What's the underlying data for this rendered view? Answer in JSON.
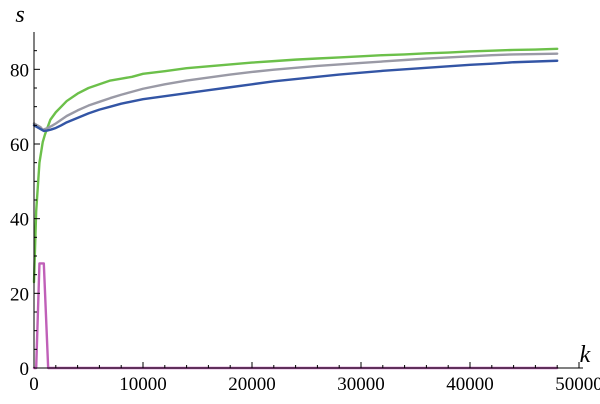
{
  "chart_data": {
    "type": "line",
    "title": "",
    "xlabel": "k",
    "ylabel": "s",
    "xlim": [
      0,
      50000
    ],
    "ylim": [
      0,
      90
    ],
    "x_ticks": [
      {
        "value": 0,
        "label": "0"
      },
      {
        "value": 10000,
        "label": "10000"
      },
      {
        "value": 20000,
        "label": "20000"
      },
      {
        "value": 30000,
        "label": "30000"
      },
      {
        "value": 40000,
        "label": "40000"
      },
      {
        "value": 50000,
        "label": "50000"
      }
    ],
    "y_ticks": [
      {
        "value": 0,
        "label": "0"
      },
      {
        "value": 20,
        "label": "20"
      },
      {
        "value": 40,
        "label": "40"
      },
      {
        "value": 60,
        "label": "60"
      },
      {
        "value": 80,
        "label": "80"
      }
    ],
    "grid": false,
    "legend": "none",
    "series": [
      {
        "color": "#6cc04a",
        "x": [
          0,
          200,
          500,
          800,
          1000,
          1500,
          2000,
          2500,
          3000,
          4000,
          5000,
          6000,
          7000,
          8000,
          9000,
          10000,
          12000,
          14000,
          16000,
          18000,
          20000,
          22000,
          24000,
          26000,
          28000,
          30000,
          32000,
          34000,
          36000,
          38000,
          40000,
          42000,
          44000,
          46000,
          48000
        ],
        "y": [
          23,
          42,
          55,
          60.5,
          62.5,
          66.5,
          68.5,
          70,
          71.5,
          73.5,
          75,
          76,
          77,
          77.5,
          78,
          78.8,
          79.5,
          80.3,
          80.8,
          81.3,
          81.8,
          82.2,
          82.6,
          82.9,
          83.2,
          83.5,
          83.8,
          84,
          84.3,
          84.5,
          84.8,
          85,
          85.2,
          85.3,
          85.5
        ]
      },
      {
        "color": "#9a9aa6",
        "x": [
          0,
          300,
          600,
          800,
          1200,
          1600,
          2000,
          2500,
          3000,
          4000,
          5000,
          6000,
          7000,
          8000,
          9000,
          10000,
          12000,
          14000,
          16000,
          18000,
          20000,
          22000,
          24000,
          26000,
          28000,
          30000,
          32000,
          34000,
          36000,
          38000,
          40000,
          42000,
          44000,
          46000,
          48000
        ],
        "y": [
          65.5,
          65,
          64.5,
          63.8,
          64.2,
          64.8,
          65.5,
          66.5,
          67.5,
          69,
          70.3,
          71.3,
          72.3,
          73.2,
          74,
          74.8,
          76,
          77,
          77.8,
          78.6,
          79.3,
          79.9,
          80.4,
          80.9,
          81.3,
          81.7,
          82.1,
          82.5,
          82.9,
          83.2,
          83.5,
          83.8,
          84,
          84.1,
          84.2
        ]
      },
      {
        "color": "#3355a5",
        "x": [
          0,
          300,
          600,
          900,
          1200,
          1600,
          2000,
          2500,
          3000,
          4000,
          5000,
          6000,
          7000,
          8000,
          9000,
          10000,
          12000,
          14000,
          16000,
          18000,
          20000,
          22000,
          24000,
          26000,
          28000,
          30000,
          32000,
          34000,
          36000,
          38000,
          40000,
          42000,
          44000,
          46000,
          48000
        ],
        "y": [
          65,
          64.5,
          64,
          63.5,
          63.6,
          63.9,
          64.3,
          65,
          65.8,
          67,
          68.2,
          69.2,
          70,
          70.8,
          71.4,
          72,
          72.8,
          73.6,
          74.4,
          75.2,
          76,
          76.8,
          77.4,
          78,
          78.6,
          79.1,
          79.6,
          80,
          80.4,
          80.8,
          81.2,
          81.5,
          81.9,
          82.1,
          82.3
        ]
      },
      {
        "color": "#c060b8",
        "x": [
          0,
          200,
          500,
          900,
          1300,
          1600,
          48000
        ],
        "y": [
          0,
          0,
          28,
          28,
          0,
          0,
          0
        ]
      }
    ]
  }
}
